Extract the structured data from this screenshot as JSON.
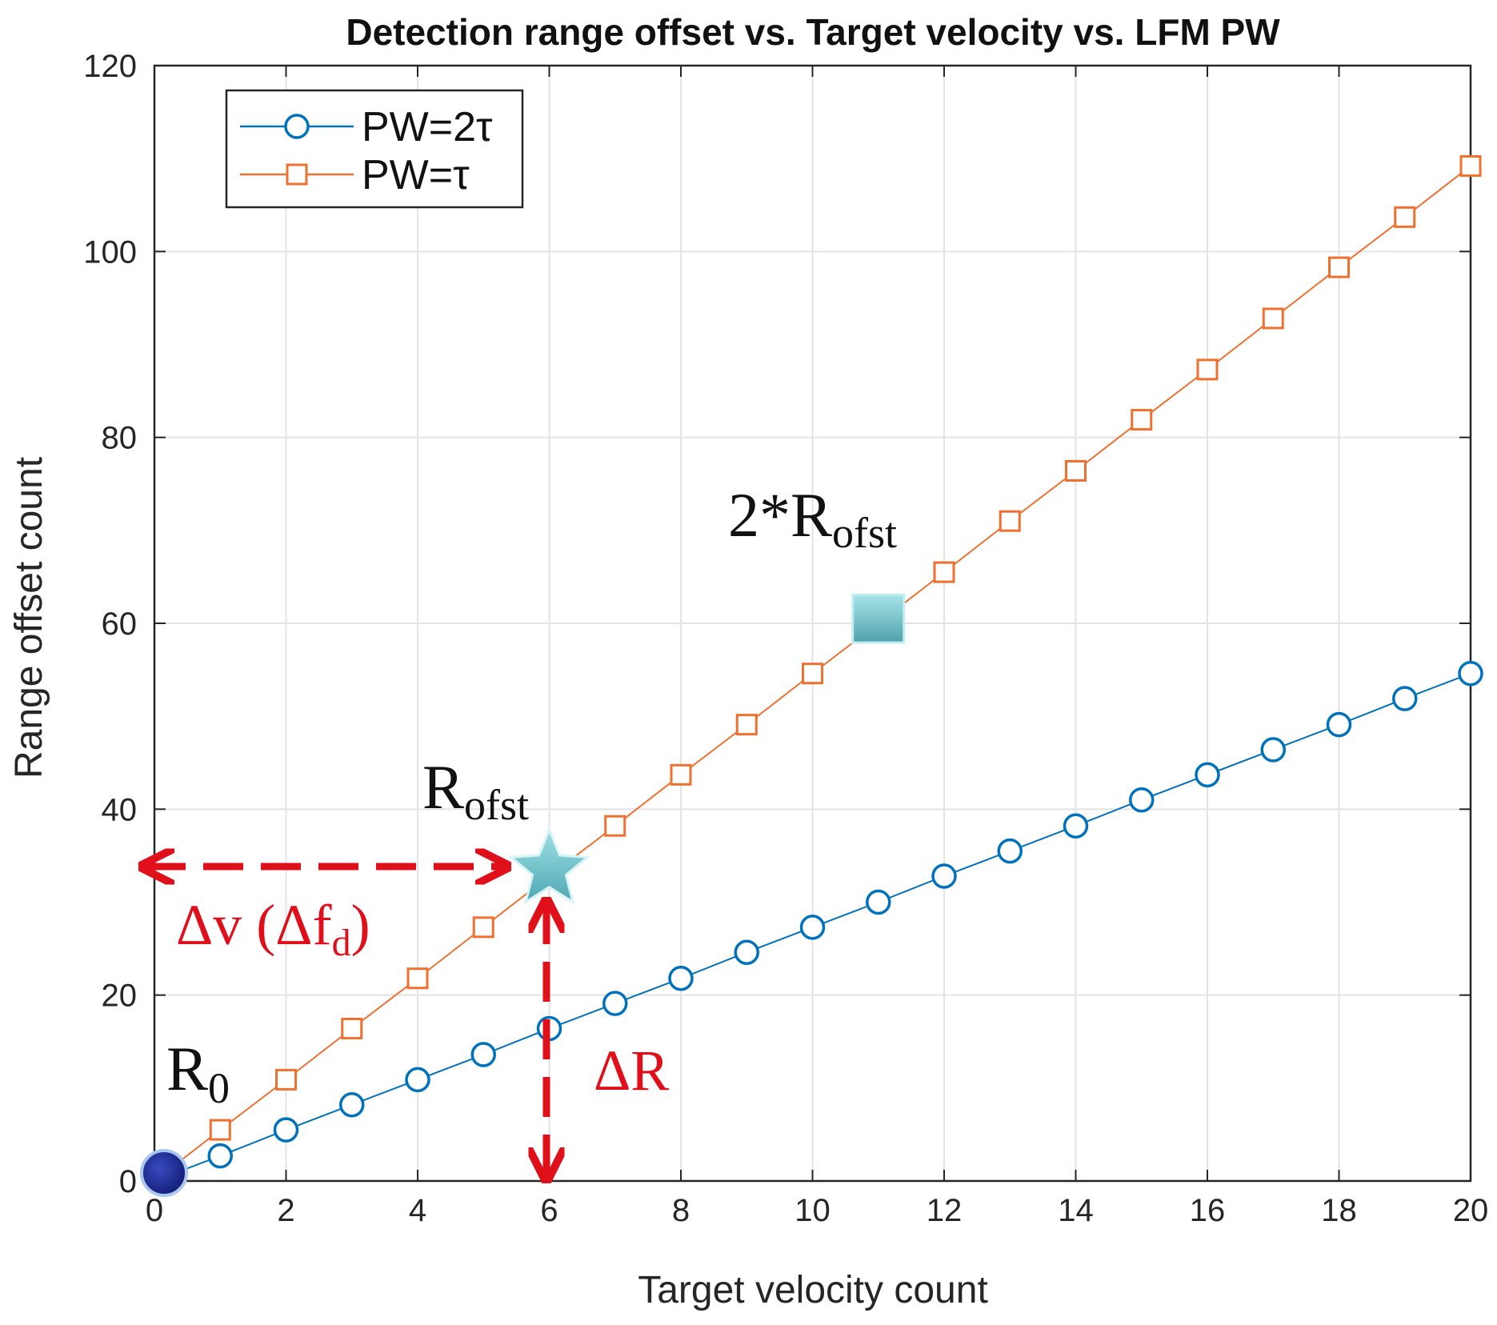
{
  "chart_data": {
    "type": "line",
    "title": "Detection range offset vs. Target velocity vs. LFM PW",
    "xlabel": "Target velocity count",
    "ylabel": "Range offset count",
    "xlim": [
      0,
      20
    ],
    "ylim": [
      0,
      120
    ],
    "xticks": [
      0,
      2,
      4,
      6,
      8,
      10,
      12,
      14,
      16,
      18,
      20
    ],
    "yticks": [
      0,
      20,
      40,
      60,
      80,
      100,
      120
    ],
    "grid": true,
    "legend_position": "top-left",
    "x": [
      0,
      1,
      2,
      3,
      4,
      5,
      6,
      7,
      8,
      9,
      10,
      11,
      12,
      13,
      14,
      15,
      16,
      17,
      18,
      19,
      20
    ],
    "series": [
      {
        "name": "PW=2τ",
        "color": "#0072bd",
        "marker": "circle",
        "values": [
          0,
          2.7,
          5.5,
          8.2,
          10.9,
          13.6,
          16.4,
          19.1,
          21.8,
          24.6,
          27.3,
          30.0,
          32.8,
          35.5,
          38.2,
          41.0,
          43.7,
          46.4,
          49.1,
          51.9,
          54.6
        ]
      },
      {
        "name": "PW=τ",
        "color": "#f07030",
        "marker": "square",
        "values": [
          0,
          5.5,
          10.9,
          16.4,
          21.8,
          27.3,
          32.8,
          38.2,
          43.7,
          49.1,
          54.6,
          60.0,
          65.5,
          71.0,
          76.4,
          81.9,
          87.3,
          92.8,
          98.3,
          103.7,
          109.2
        ]
      }
    ],
    "annotations": [
      {
        "id": "r0",
        "base": "R",
        "sub": "0",
        "color": "#111111"
      },
      {
        "id": "rofst",
        "base": "R",
        "sub": "ofst",
        "color": "#111111"
      },
      {
        "id": "two_rofst",
        "base": "2*R",
        "sub": "ofst",
        "color": "#111111"
      },
      {
        "id": "delta_v",
        "base": "Δv (Δf",
        "sub": "d",
        "tail": ")",
        "color": "#e0101a"
      },
      {
        "id": "delta_r",
        "base": "ΔR",
        "sub": "",
        "color": "#e0101a"
      }
    ],
    "highlight_points": [
      {
        "id": "origin-dot",
        "shape": "circle",
        "x": 0,
        "y": 0,
        "color": "#1a2a9a"
      },
      {
        "id": "rofst-star",
        "shape": "star",
        "x": 6,
        "y": 33.5,
        "color": "#7fd0d8"
      },
      {
        "id": "two-rofst-square",
        "shape": "square",
        "x": 11,
        "y": 60.5,
        "color": "#6cc4cc"
      }
    ]
  }
}
